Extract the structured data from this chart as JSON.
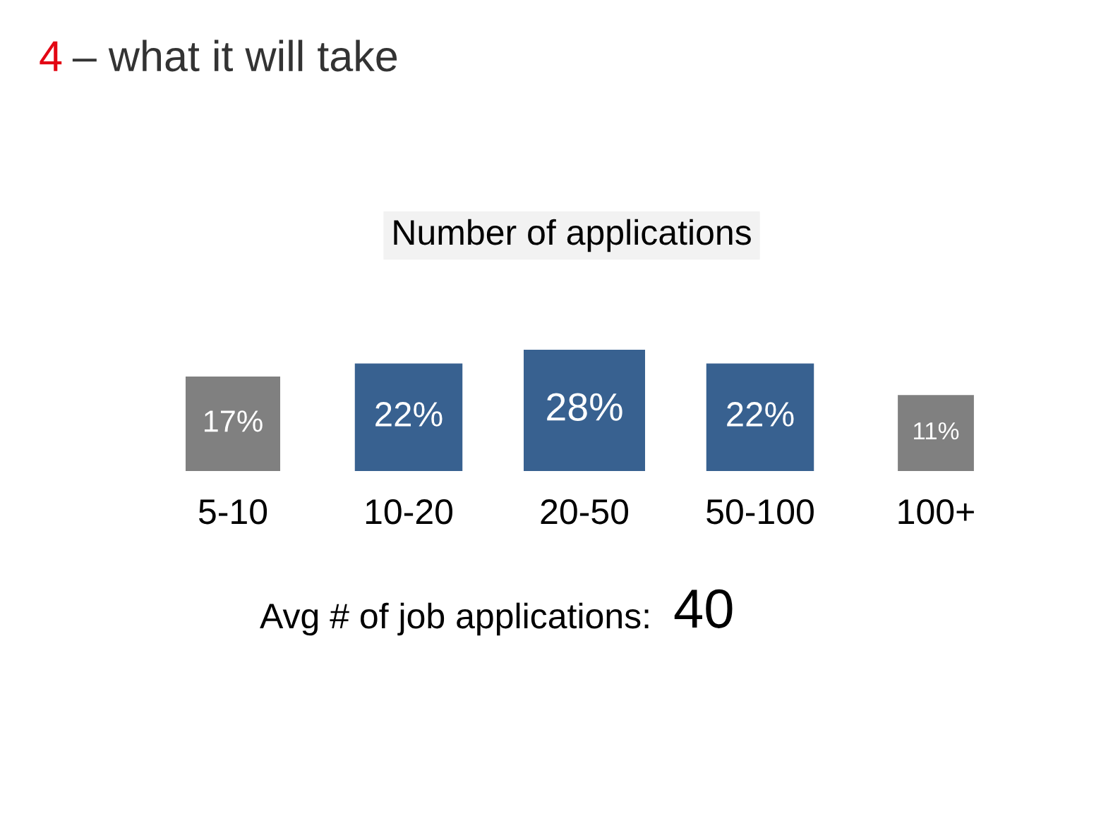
{
  "chart_data": {
    "type": "other",
    "title": "4 – what it will take",
    "subtitle": "Number of applications",
    "categories": [
      "5-10",
      "10-20",
      "20-50",
      "50-100",
      "100+"
    ],
    "values": [
      17,
      22,
      28,
      22,
      11
    ],
    "value_labels": [
      "17%",
      "22%",
      "28%",
      "22%",
      "11%"
    ],
    "colors": [
      "#808080",
      "#386190",
      "#386190",
      "#386190",
      "#808080"
    ],
    "annotations": [
      "Avg # of job applications: 40"
    ]
  }
}
